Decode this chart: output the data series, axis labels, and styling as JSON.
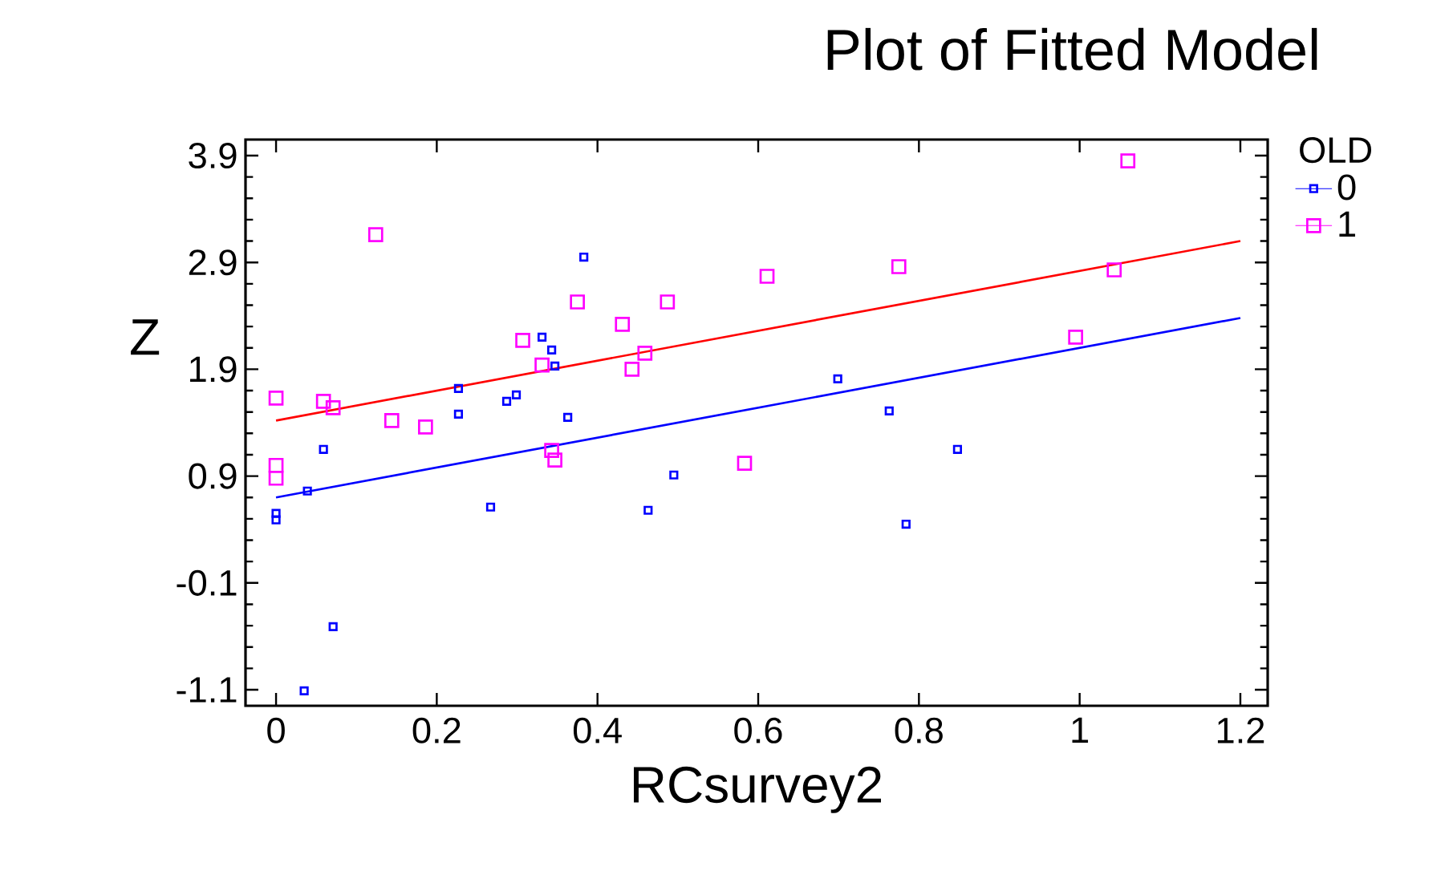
{
  "chart_data": {
    "type": "scatter",
    "title": "Plot of Fitted Model",
    "xlabel": "RCsurvey2",
    "ylabel": "Z",
    "legend_title": "OLD",
    "xlim": [
      -0.038,
      1.234
    ],
    "ylim": [
      -1.25,
      4.05
    ],
    "xticks": [
      0,
      0.2,
      0.4,
      0.6,
      0.8,
      1,
      1.2
    ],
    "yticks": [
      -1.1,
      -0.1,
      0.9,
      1.9,
      2.9,
      3.9
    ],
    "marker": "square",
    "legend": "top right",
    "grid": false,
    "series": [
      {
        "name": "0",
        "color": "#0000ff",
        "x": [
          0.0,
          0.0,
          0.039,
          0.059,
          0.071,
          0.035,
          0.227,
          0.227,
          0.267,
          0.287,
          0.299,
          0.331,
          0.343,
          0.347,
          0.363,
          0.383,
          0.463,
          0.495,
          0.699,
          0.763,
          0.784,
          0.848
        ],
        "values": [
          0.55,
          0.49,
          0.76,
          1.15,
          -0.51,
          -1.11,
          1.72,
          1.48,
          0.61,
          1.6,
          1.66,
          2.2,
          2.08,
          1.93,
          1.45,
          2.95,
          0.58,
          0.91,
          1.81,
          1.51,
          0.45,
          1.15
        ]
      },
      {
        "name": "1",
        "color": "#ff00ff",
        "x": [
          0.0,
          0.0,
          0.0,
          0.059,
          0.071,
          0.124,
          0.144,
          0.186,
          0.307,
          0.331,
          0.343,
          0.347,
          0.375,
          0.431,
          0.443,
          0.459,
          0.487,
          0.583,
          0.611,
          0.775,
          0.995,
          1.043,
          1.06
        ],
        "values": [
          1.63,
          1.0,
          0.88,
          1.6,
          1.54,
          3.16,
          1.42,
          1.36,
          2.17,
          1.94,
          1.14,
          1.05,
          2.53,
          2.32,
          1.9,
          2.05,
          2.53,
          1.02,
          2.77,
          2.86,
          2.2,
          2.83,
          3.85
        ]
      },
      {
        "type": "line",
        "marker": "none",
        "color": "#0000ff",
        "x": [
          0.0,
          1.2
        ],
        "values": [
          0.7,
          2.38
        ]
      },
      {
        "type": "line",
        "marker": "none",
        "color": "#ff0000",
        "x": [
          0.0,
          1.2
        ],
        "values": [
          1.42,
          3.1
        ]
      }
    ]
  }
}
